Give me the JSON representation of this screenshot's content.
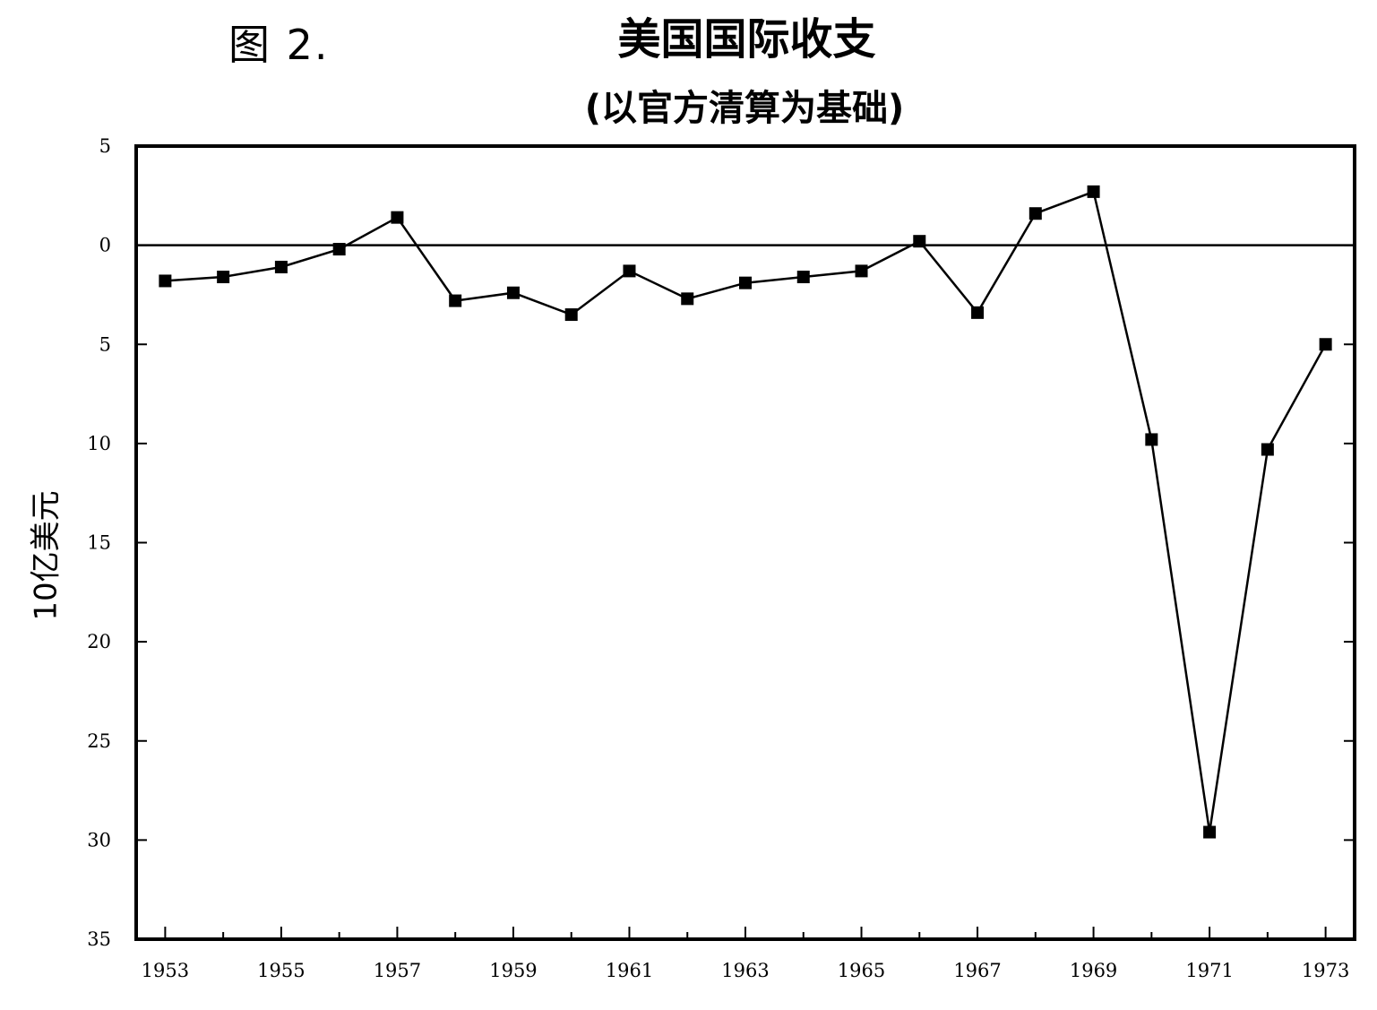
{
  "figure_label": "图 2.",
  "chart_data": {
    "type": "line",
    "title": "美国国际收支",
    "subtitle": "(以官方清算为基础)",
    "xlabel": "",
    "ylabel": "10亿美元",
    "x": [
      1953,
      1954,
      1955,
      1956,
      1957,
      1958,
      1959,
      1960,
      1961,
      1962,
      1963,
      1964,
      1965,
      1966,
      1967,
      1968,
      1969,
      1970,
      1971,
      1972,
      1973
    ],
    "series": [
      {
        "values": [
          -1.8,
          -1.6,
          -1.1,
          -0.2,
          1.4,
          -2.8,
          -2.4,
          -3.5,
          -1.3,
          -2.7,
          -1.9,
          -1.6,
          -1.3,
          0.2,
          -3.4,
          1.6,
          2.7,
          -9.8,
          -29.6,
          -10.3,
          -5.0
        ]
      }
    ],
    "xlim": [
      1952.5,
      1973.5
    ],
    "ylim": [
      -35,
      5
    ],
    "xticks": [
      1953,
      1955,
      1957,
      1959,
      1961,
      1963,
      1965,
      1967,
      1969,
      1971,
      1973
    ],
    "xtick_labels": [
      "1953",
      "1955",
      "1957",
      "1959",
      "1961",
      "1963",
      "1965",
      "1967",
      "1969",
      "1971",
      "1973"
    ],
    "yticks": [
      5,
      0,
      -5,
      -10,
      -15,
      -20,
      -25,
      -30,
      -35
    ],
    "ytick_labels": [
      "5",
      "0",
      "5",
      "10",
      "15",
      "20",
      "25",
      "30",
      "35"
    ],
    "zero_line": true,
    "grid": false,
    "legend": "none",
    "marker": "square",
    "line_color": "#000000"
  }
}
